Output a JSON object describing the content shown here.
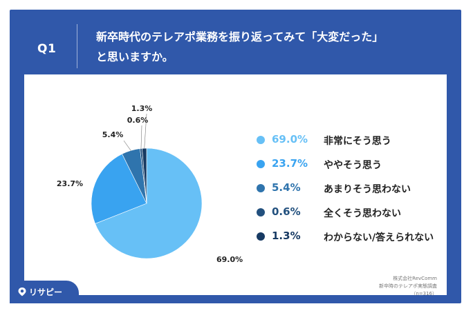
{
  "header": {
    "question_number": "Q1",
    "title_line1": "新卒時代のテレアポ業務を振り返ってみて「大変だった」",
    "title_line2": "と思いますか。"
  },
  "chart_data": {
    "type": "pie",
    "slices": [
      {
        "label": "非常にそう思う",
        "value": 69.0,
        "display": "69.0%",
        "color": "#67c0f6"
      },
      {
        "label": "ややそう思う",
        "value": 23.7,
        "display": "23.7%",
        "color": "#39a3f0"
      },
      {
        "label": "あまりそう思わない",
        "value": 5.4,
        "display": "5.4%",
        "color": "#2f74ad"
      },
      {
        "label": "全くそう思わない",
        "value": 0.6,
        "display": "0.6%",
        "color": "#22507e"
      },
      {
        "label": "わからない/答えられない",
        "value": 1.3,
        "display": "1.3%",
        "color": "#173a63"
      }
    ],
    "legend_placement": "right"
  },
  "source": {
    "line1": "株式会社RevComm",
    "line2": "新卒時のテレアポ実態調査",
    "line3": "（n=316）"
  },
  "branding": {
    "logo_text": "リサピー"
  }
}
